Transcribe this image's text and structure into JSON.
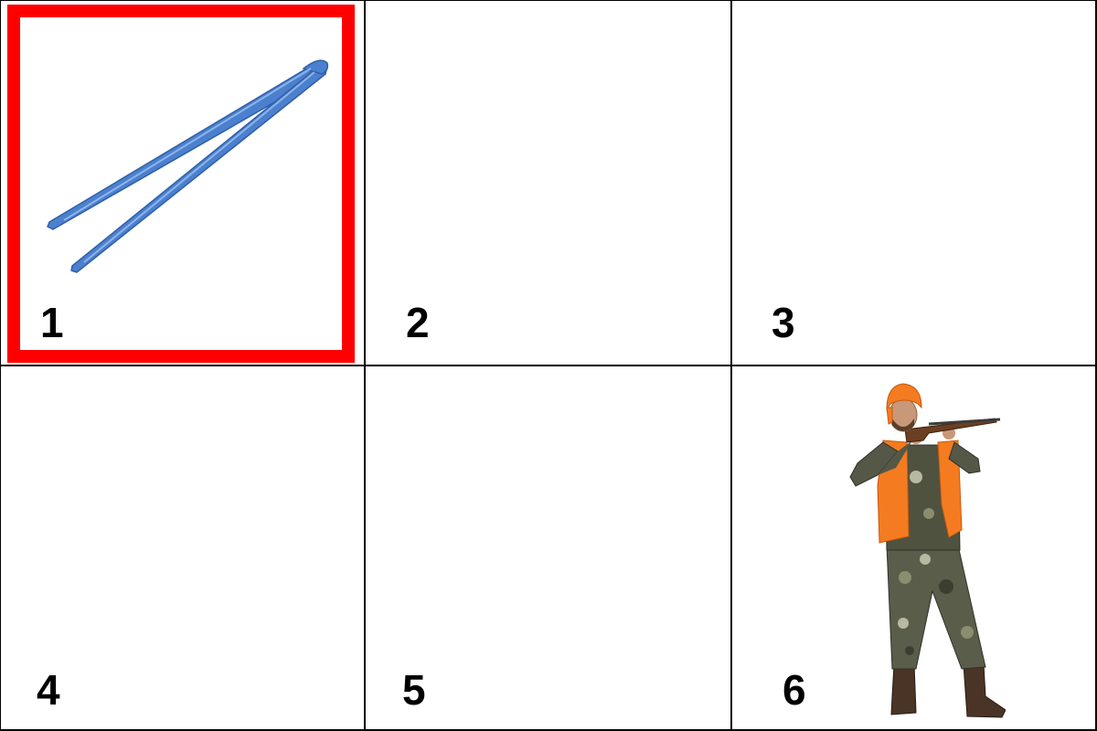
{
  "colors": {
    "background": "#ffffff",
    "grid_line": "#000000",
    "selection": "#ff0000",
    "number_text": "#000000"
  },
  "selected_cell": 1,
  "cells": [
    {
      "number": "1",
      "content": "tweezers-icon"
    },
    {
      "number": "2",
      "content": ""
    },
    {
      "number": "3",
      "content": ""
    },
    {
      "number": "4",
      "content": ""
    },
    {
      "number": "5",
      "content": ""
    },
    {
      "number": "6",
      "content": "hunter-with-rifle-icon"
    }
  ]
}
